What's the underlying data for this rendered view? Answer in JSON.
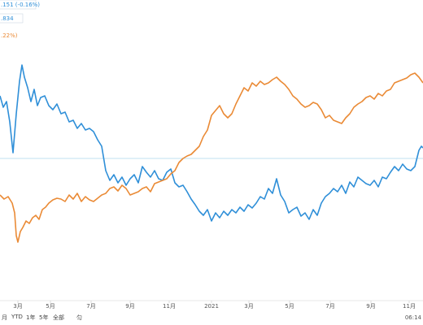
{
  "legend": {
    "series1_text": ".151 (-0.16%)",
    "series2_text": ".834",
    "series3_text": ".22%)"
  },
  "footer": {
    "time": "06:14",
    "range_buttons": [
      "月",
      "YTD",
      "1年",
      "5年",
      "全部",
      "匀"
    ]
  },
  "chart_data": {
    "type": "line",
    "x_tick_labels": [
      "3月",
      "5月",
      "7月",
      "9月",
      "11月",
      "2021",
      "3月",
      "5月",
      "7月",
      "9月",
      "11月"
    ],
    "colors": {
      "blue": "#2f8fd8",
      "orange": "#ea8a35",
      "baseline": "#bfe0f2"
    },
    "series": [
      {
        "color": "blue",
        "values": [
          [
            0,
            118
          ],
          [
            4,
            132
          ],
          [
            8,
            125
          ],
          [
            12,
            150
          ],
          [
            16,
            188
          ],
          [
            20,
            140
          ],
          [
            24,
            100
          ],
          [
            27,
            80
          ],
          [
            30,
            95
          ],
          [
            34,
            108
          ],
          [
            38,
            125
          ],
          [
            42,
            110
          ],
          [
            46,
            130
          ],
          [
            50,
            120
          ],
          [
            55,
            118
          ],
          [
            60,
            130
          ],
          [
            65,
            135
          ],
          [
            70,
            128
          ],
          [
            75,
            140
          ],
          [
            80,
            138
          ],
          [
            85,
            150
          ],
          [
            90,
            148
          ],
          [
            95,
            158
          ],
          [
            100,
            152
          ],
          [
            105,
            160
          ],
          [
            110,
            158
          ],
          [
            115,
            162
          ],
          [
            120,
            172
          ],
          [
            125,
            180
          ],
          [
            130,
            210
          ],
          [
            135,
            222
          ],
          [
            140,
            215
          ],
          [
            145,
            225
          ],
          [
            150,
            218
          ],
          [
            155,
            228
          ],
          [
            160,
            220
          ],
          [
            165,
            215
          ],
          [
            170,
            225
          ],
          [
            175,
            205
          ],
          [
            180,
            212
          ],
          [
            185,
            218
          ],
          [
            190,
            210
          ],
          [
            195,
            220
          ],
          [
            200,
            222
          ],
          [
            205,
            212
          ],
          [
            210,
            208
          ],
          [
            215,
            225
          ],
          [
            220,
            230
          ],
          [
            225,
            228
          ],
          [
            230,
            236
          ],
          [
            235,
            245
          ],
          [
            240,
            252
          ],
          [
            245,
            260
          ],
          [
            250,
            265
          ],
          [
            255,
            258
          ],
          [
            260,
            272
          ],
          [
            265,
            262
          ],
          [
            270,
            268
          ],
          [
            275,
            260
          ],
          [
            280,
            265
          ],
          [
            285,
            258
          ],
          [
            290,
            262
          ],
          [
            295,
            255
          ],
          [
            300,
            260
          ],
          [
            305,
            252
          ],
          [
            310,
            256
          ],
          [
            315,
            250
          ],
          [
            320,
            242
          ],
          [
            325,
            245
          ],
          [
            330,
            232
          ],
          [
            335,
            238
          ],
          [
            340,
            220
          ],
          [
            345,
            240
          ],
          [
            350,
            248
          ],
          [
            355,
            262
          ],
          [
            360,
            258
          ],
          [
            365,
            255
          ],
          [
            370,
            266
          ],
          [
            375,
            262
          ],
          [
            380,
            270
          ],
          [
            385,
            258
          ],
          [
            390,
            265
          ],
          [
            395,
            250
          ],
          [
            400,
            242
          ],
          [
            405,
            238
          ],
          [
            410,
            232
          ],
          [
            415,
            236
          ],
          [
            420,
            228
          ],
          [
            425,
            238
          ],
          [
            430,
            224
          ],
          [
            435,
            230
          ],
          [
            440,
            218
          ],
          [
            445,
            222
          ],
          [
            450,
            226
          ],
          [
            455,
            228
          ],
          [
            460,
            222
          ],
          [
            465,
            230
          ],
          [
            470,
            218
          ],
          [
            475,
            220
          ],
          [
            480,
            212
          ],
          [
            485,
            205
          ],
          [
            490,
            210
          ],
          [
            495,
            202
          ],
          [
            500,
            208
          ],
          [
            505,
            210
          ],
          [
            510,
            205
          ],
          [
            515,
            185
          ],
          [
            518,
            180
          ],
          [
            520,
            182
          ]
        ]
      },
      {
        "color": "orange",
        "values": [
          [
            0,
            240
          ],
          [
            5,
            245
          ],
          [
            10,
            242
          ],
          [
            15,
            250
          ],
          [
            18,
            262
          ],
          [
            20,
            290
          ],
          [
            22,
            298
          ],
          [
            25,
            285
          ],
          [
            28,
            280
          ],
          [
            32,
            272
          ],
          [
            36,
            275
          ],
          [
            40,
            268
          ],
          [
            44,
            265
          ],
          [
            48,
            270
          ],
          [
            52,
            258
          ],
          [
            56,
            255
          ],
          [
            60,
            250
          ],
          [
            65,
            246
          ],
          [
            70,
            244
          ],
          [
            75,
            245
          ],
          [
            80,
            248
          ],
          [
            85,
            240
          ],
          [
            90,
            245
          ],
          [
            95,
            238
          ],
          [
            100,
            248
          ],
          [
            105,
            242
          ],
          [
            110,
            246
          ],
          [
            115,
            248
          ],
          [
            120,
            244
          ],
          [
            125,
            240
          ],
          [
            130,
            238
          ],
          [
            135,
            232
          ],
          [
            140,
            230
          ],
          [
            145,
            235
          ],
          [
            150,
            228
          ],
          [
            155,
            232
          ],
          [
            160,
            240
          ],
          [
            165,
            238
          ],
          [
            170,
            236
          ],
          [
            175,
            232
          ],
          [
            180,
            230
          ],
          [
            185,
            236
          ],
          [
            190,
            226
          ],
          [
            195,
            224
          ],
          [
            200,
            222
          ],
          [
            205,
            220
          ],
          [
            210,
            214
          ],
          [
            215,
            210
          ],
          [
            220,
            200
          ],
          [
            225,
            195
          ],
          [
            230,
            192
          ],
          [
            235,
            190
          ],
          [
            240,
            185
          ],
          [
            245,
            180
          ],
          [
            250,
            168
          ],
          [
            255,
            160
          ],
          [
            260,
            142
          ],
          [
            265,
            136
          ],
          [
            270,
            130
          ],
          [
            275,
            140
          ],
          [
            280,
            145
          ],
          [
            285,
            140
          ],
          [
            290,
            128
          ],
          [
            295,
            118
          ],
          [
            300,
            108
          ],
          [
            305,
            112
          ],
          [
            310,
            102
          ],
          [
            315,
            106
          ],
          [
            320,
            100
          ],
          [
            325,
            104
          ],
          [
            330,
            102
          ],
          [
            335,
            98
          ],
          [
            340,
            95
          ],
          [
            345,
            100
          ],
          [
            350,
            104
          ],
          [
            355,
            110
          ],
          [
            360,
            118
          ],
          [
            365,
            122
          ],
          [
            370,
            128
          ],
          [
            375,
            132
          ],
          [
            380,
            130
          ],
          [
            385,
            126
          ],
          [
            390,
            128
          ],
          [
            395,
            135
          ],
          [
            400,
            145
          ],
          [
            405,
            142
          ],
          [
            410,
            148
          ],
          [
            415,
            150
          ],
          [
            420,
            152
          ],
          [
            425,
            145
          ],
          [
            430,
            140
          ],
          [
            435,
            132
          ],
          [
            440,
            128
          ],
          [
            445,
            125
          ],
          [
            450,
            120
          ],
          [
            455,
            118
          ],
          [
            460,
            122
          ],
          [
            465,
            115
          ],
          [
            470,
            118
          ],
          [
            475,
            112
          ],
          [
            480,
            110
          ],
          [
            485,
            102
          ],
          [
            490,
            100
          ],
          [
            495,
            98
          ],
          [
            500,
            96
          ],
          [
            505,
            92
          ],
          [
            510,
            90
          ],
          [
            515,
            95
          ],
          [
            520,
            102
          ]
        ]
      }
    ],
    "baseline_y": 195,
    "grid": false
  }
}
